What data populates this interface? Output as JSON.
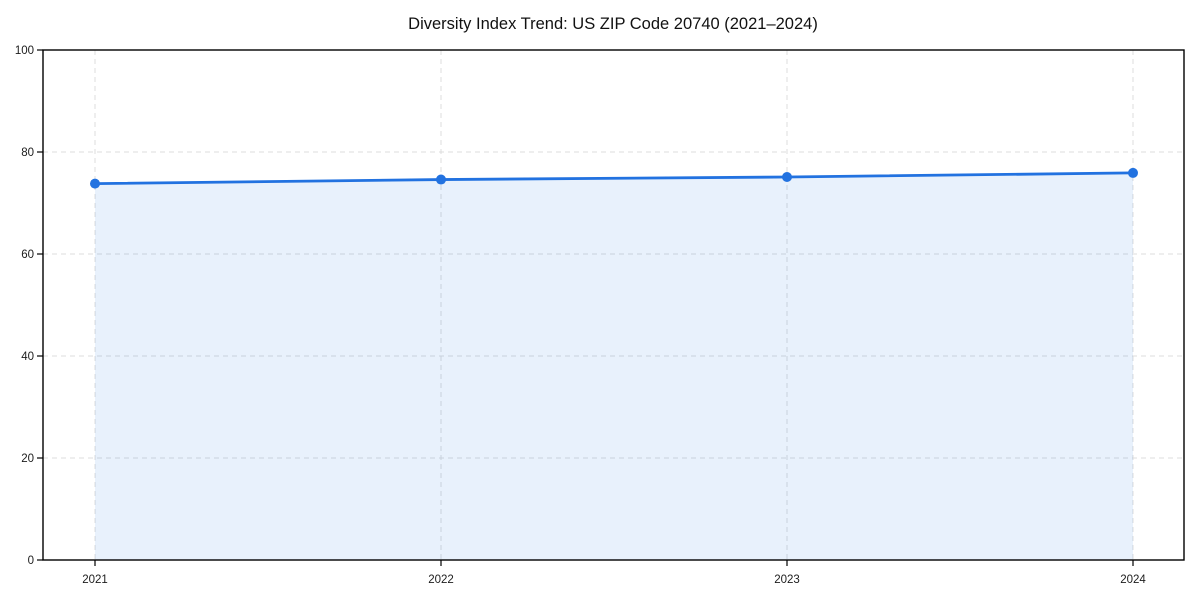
{
  "chart": {
    "title": "Diversity Index Trend: US ZIP Code 20740 (2021–2024)"
  },
  "chart_data": {
    "type": "area",
    "title": "Diversity Index Trend: US ZIP Code 20740 (2021–2024)",
    "categories": [
      "2021",
      "2022",
      "2023",
      "2024"
    ],
    "values": [
      73.8,
      74.6,
      75.1,
      75.9
    ],
    "series_name": "Diversity Index",
    "xlabel": "",
    "ylabel": "",
    "ylim": [
      0,
      100
    ],
    "y_ticks": [
      0,
      20,
      40,
      60,
      80,
      100
    ],
    "grid": "on",
    "grid_style": "dashed",
    "legend": "none",
    "marker": "circle",
    "colors": {
      "line": "#2272e0",
      "marker": "#2272e0",
      "fill": "rgba(34,114,224,0.10)",
      "grid": "#dcdcdc",
      "axis": "#000000",
      "background": "#ffffff",
      "text": "#111111"
    }
  }
}
